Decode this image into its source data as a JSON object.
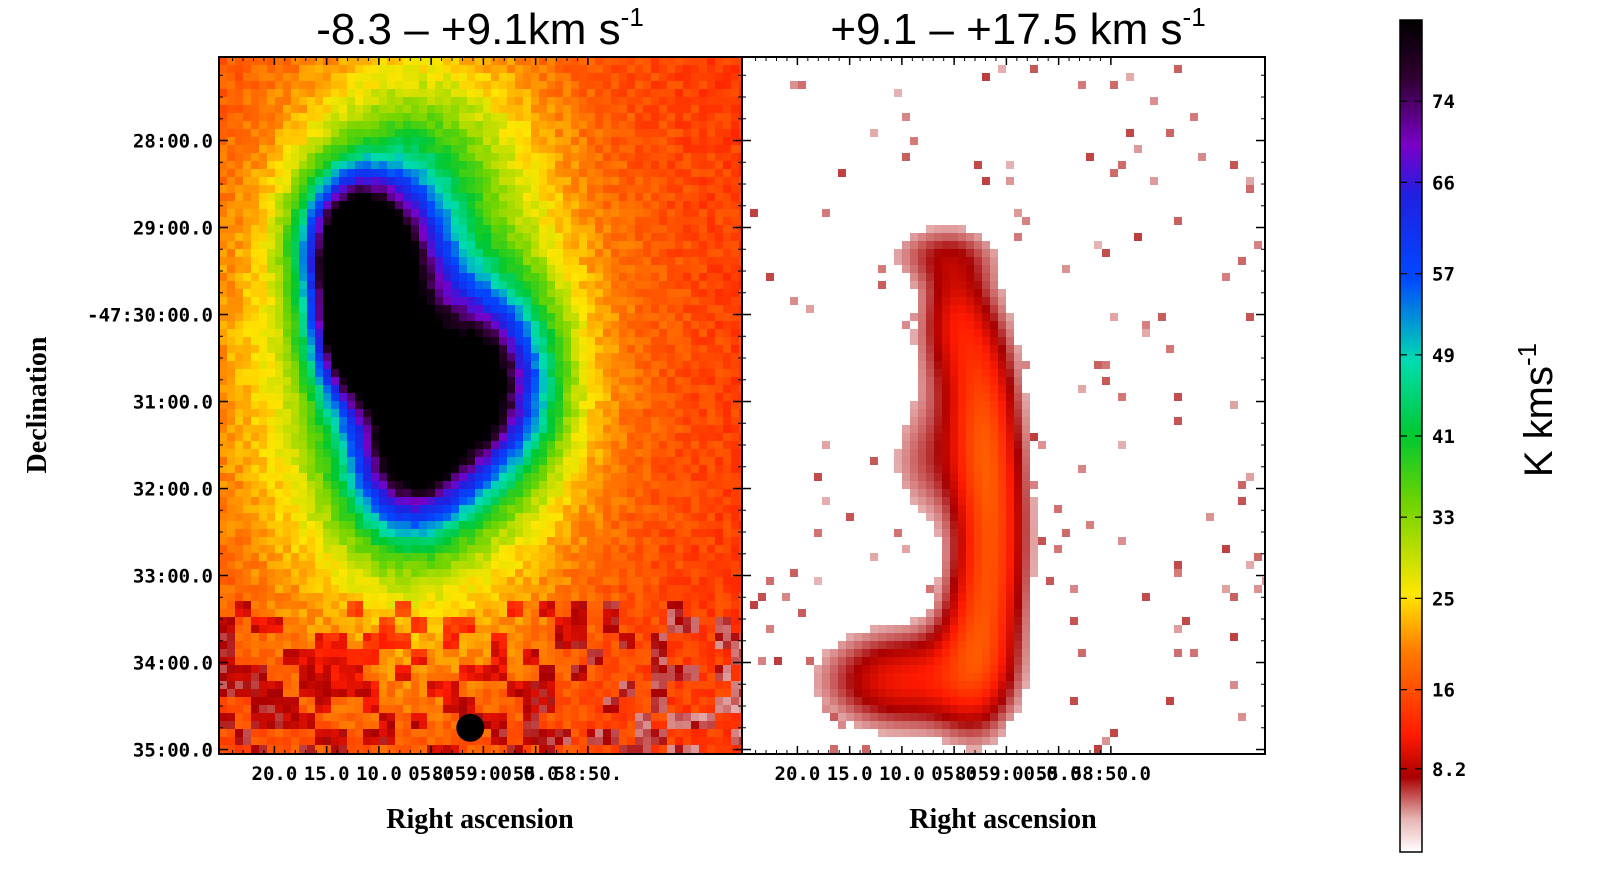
{
  "chart_data": {
    "type": "heatmap",
    "ylabel": "Declination",
    "dec_ticks": [
      "28:00.0",
      "29:00.0",
      "-47:30:00.0",
      "31:00.0",
      "32:00.0",
      "33:00.0",
      "34:00.0",
      "35:00.0"
    ],
    "colorbar": {
      "label": "K kms",
      "label_sup": "-1",
      "ticks": [
        "74",
        "66",
        "57",
        "49",
        "41",
        "33",
        "25",
        "16",
        "8.2"
      ],
      "tick_values": [
        74,
        66,
        57,
        49,
        41,
        33,
        25,
        16,
        8.2
      ],
      "range": [
        0,
        82
      ],
      "colors": [
        "#ffffff",
        "#a80000",
        "#ff1a00",
        "#ffa000",
        "#ffe600",
        "#44cc00",
        "#00dcb0",
        "#0048ff",
        "#7a00c8",
        "#000000"
      ]
    },
    "panels": [
      {
        "title": "-8.3 – +9.1km s",
        "title_sup": "-1",
        "xlabel": "Right ascension",
        "ra_ticks": [
          "20.0",
          "15.0",
          "10.0",
          "05.0",
          "8:59:00.0",
          "55.0",
          "58:50."
        ],
        "background_value": 14,
        "components": [
          {
            "ra_sec": 12.5,
            "dec_min": 29.2,
            "peak": 68,
            "sigma_ra": 3.2,
            "sigma_dec": 0.55
          },
          {
            "ra_sec": 12.3,
            "dec_min": 30.25,
            "peak": 66,
            "sigma_ra": 2.6,
            "sigma_dec": 0.5
          },
          {
            "ra_sec": 7.5,
            "dec_min": 29.6,
            "peak": 32,
            "sigma_ra": 3.5,
            "sigma_dec": 0.8
          },
          {
            "ra_sec": 0.3,
            "dec_min": 30.8,
            "peak": 56,
            "sigma_ra": 4.5,
            "sigma_dec": 0.75
          },
          {
            "ra_sec": 7.2,
            "dec_min": 31.6,
            "peak": 52,
            "sigma_ra": 4.0,
            "sigma_dec": 0.65
          },
          {
            "ra_sec": 7.0,
            "dec_min": 30.5,
            "peak": 22,
            "sigma_ra": 12.0,
            "sigma_dec": 2.3
          },
          {
            "ra_sec": 5.5,
            "dec_min": 28.3,
            "peak": 10,
            "sigma_ra": 6.0,
            "sigma_dec": 0.8
          }
        ]
      },
      {
        "title": "+9.1 – +17.5 km s",
        "title_sup": "-1",
        "xlabel": "Right ascension",
        "ra_ticks": [
          "20.0",
          "15.0",
          "10.0",
          "05.0",
          "8:59:00.0",
          "55.0",
          "58:50.0"
        ],
        "background_value": 0,
        "components": [
          {
            "ra_sec": 9.8,
            "dec_min": 34.2,
            "peak": 11,
            "sigma_ra": 5.5,
            "sigma_dec": 0.4
          },
          {
            "ra_sec": 3.0,
            "dec_min": 33.8,
            "peak": 10,
            "sigma_ra": 2.5,
            "sigma_dec": 0.7
          },
          {
            "ra_sec": 1.2,
            "dec_min": 32.6,
            "peak": 12,
            "sigma_ra": 2.3,
            "sigma_dec": 0.9
          },
          {
            "ra_sec": 2.2,
            "dec_min": 31.2,
            "peak": 11,
            "sigma_ra": 2.3,
            "sigma_dec": 0.8
          },
          {
            "ra_sec": 5.0,
            "dec_min": 30.3,
            "peak": 6,
            "sigma_ra": 3.0,
            "sigma_dec": 0.6
          },
          {
            "ra_sec": 7.5,
            "dec_min": 31.7,
            "peak": 5,
            "sigma_ra": 3.0,
            "sigma_dec": 0.5
          },
          {
            "ra_sec": 6.5,
            "dec_min": 29.3,
            "peak": 5,
            "sigma_ra": 4.0,
            "sigma_dec": 0.25
          },
          {
            "ra_sec": 5.0,
            "dec_min": 29.9,
            "peak": 4,
            "sigma_ra": 2.0,
            "sigma_dec": 0.4
          }
        ]
      }
    ],
    "beam": {
      "ra_sec": 51.3,
      "dec_min": 34.75
    }
  }
}
